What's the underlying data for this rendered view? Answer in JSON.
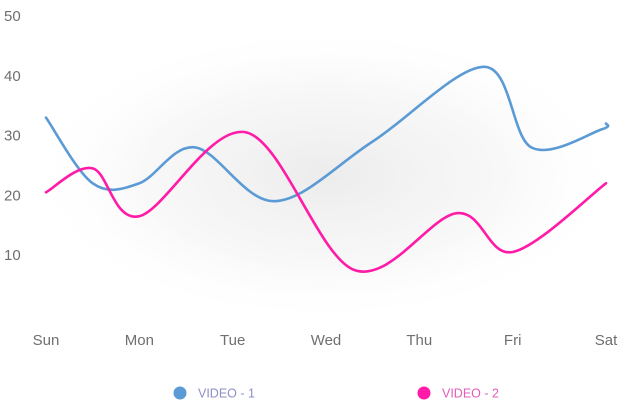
{
  "chart_data": {
    "type": "line",
    "curve": "smooth",
    "categories": [
      "Sun",
      "Mon",
      "Tue",
      "Wed",
      "Thu",
      "Fri",
      "Sat"
    ],
    "yticks": [
      10,
      20,
      30,
      40,
      50
    ],
    "ylim": [
      0,
      50
    ],
    "grid": false,
    "legend_position": "bottom",
    "series": [
      {
        "name": "VIDEO - 1",
        "color": "#5b9bd5",
        "label_color": "#8e8ec8",
        "x": [
          0,
          0.5,
          1,
          1.6,
          2.45,
          3.5,
          4.7,
          5.2,
          5.95,
          6
        ],
        "values": [
          33,
          22,
          22,
          28,
          19,
          29,
          41.5,
          28,
          31,
          32
        ]
      },
      {
        "name": "VIDEO - 2",
        "color": "#ff1aa8",
        "label_color": "#e05cb8",
        "x": [
          0,
          0.5,
          1,
          2.15,
          3.3,
          4.4,
          5.0,
          6
        ],
        "values": [
          20.5,
          24.5,
          16.5,
          30.5,
          7.5,
          17,
          10.5,
          22
        ]
      }
    ]
  }
}
